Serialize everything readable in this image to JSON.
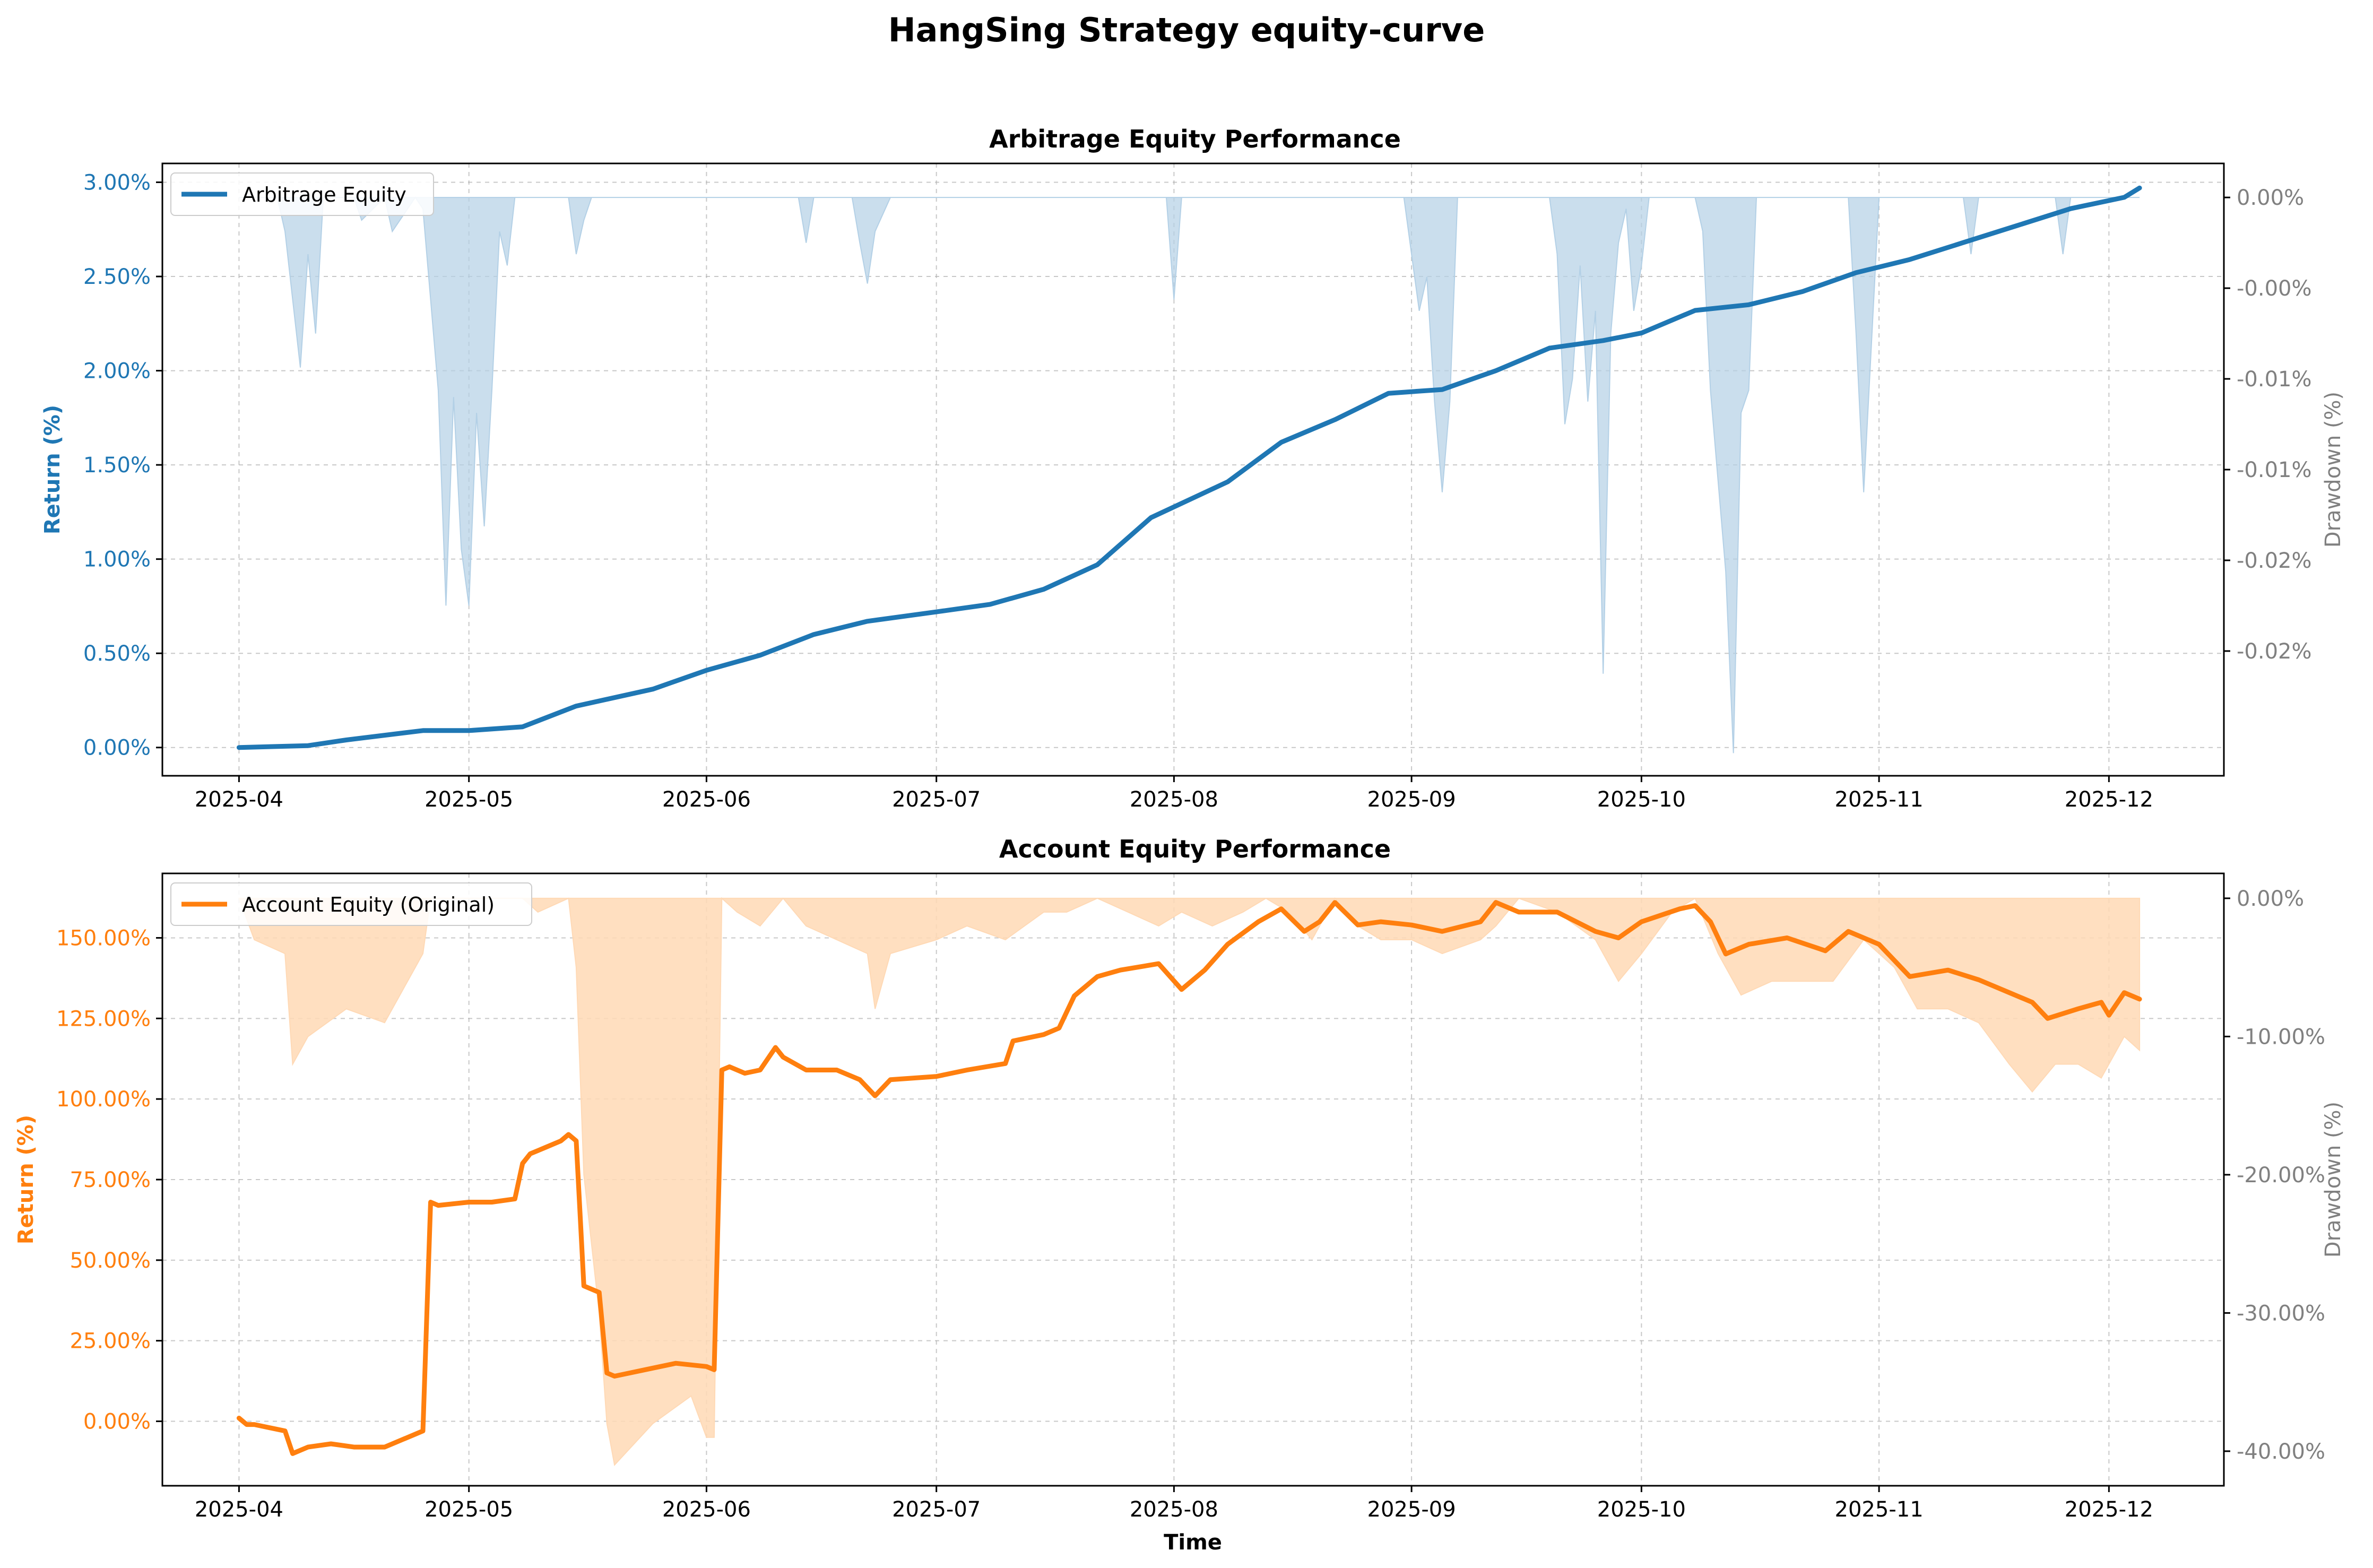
{
  "figure_title": "HangSing Strategy equity-curve",
  "colors": {
    "arb": "#1f77b4",
    "arb_fill": "#b3d0e6",
    "acct": "#ff7f0e",
    "acct_fill": "#ffd9b5",
    "secondary_axis": "#808080",
    "grid": "#b0b0b0"
  },
  "chart_data": [
    {
      "type": "line",
      "title": "Arbitrage Equity Performance",
      "xlabel": "",
      "ylabel": "Return (%)",
      "y2label": "Drawdown (%)",
      "legend": [
        "Arbitrage Equity"
      ],
      "legend_position": "top-left",
      "grid": true,
      "xlim": [
        "2025-03-22",
        "2025-12-16"
      ],
      "ylim": [
        -0.15,
        3.1
      ],
      "y2lim": [
        -0.0255,
        0.0015
      ],
      "x_ticks": [
        "2025-04",
        "2025-05",
        "2025-06",
        "2025-07",
        "2025-08",
        "2025-09",
        "2025-10",
        "2025-11",
        "2025-12"
      ],
      "x_tick_dates": [
        "2025-04-01",
        "2025-05-01",
        "2025-06-01",
        "2025-07-01",
        "2025-08-01",
        "2025-09-01",
        "2025-10-01",
        "2025-11-01",
        "2025-12-01"
      ],
      "y_ticks": [
        0,
        0.5,
        1.0,
        1.5,
        2.0,
        2.5,
        3.0
      ],
      "y_tick_labels": [
        "0.00%",
        "0.50%",
        "1.00%",
        "1.50%",
        "2.00%",
        "2.50%",
        "3.00%"
      ],
      "y2_ticks": [
        0,
        -0.004,
        -0.008,
        -0.012,
        -0.016,
        -0.02
      ],
      "y2_tick_labels": [
        "0.00%",
        "-0.00%",
        "-0.01%",
        "-0.01%",
        "-0.02%",
        "-0.02%"
      ],
      "series": [
        {
          "name": "Arbitrage Equity",
          "kind": "line",
          "x": [
            "2025-04-01",
            "2025-04-10",
            "2025-04-15",
            "2025-04-25",
            "2025-05-01",
            "2025-05-08",
            "2025-05-15",
            "2025-05-25",
            "2025-06-01",
            "2025-06-08",
            "2025-06-15",
            "2025-06-22",
            "2025-07-01",
            "2025-07-08",
            "2025-07-15",
            "2025-07-22",
            "2025-07-29",
            "2025-08-08",
            "2025-08-15",
            "2025-08-22",
            "2025-08-29",
            "2025-09-05",
            "2025-09-12",
            "2025-09-19",
            "2025-09-26",
            "2025-10-01",
            "2025-10-08",
            "2025-10-15",
            "2025-10-22",
            "2025-10-29",
            "2025-11-05",
            "2025-11-12",
            "2025-11-19",
            "2025-11-26",
            "2025-12-03",
            "2025-12-05"
          ],
          "values": [
            0.0,
            0.01,
            0.04,
            0.09,
            0.09,
            0.11,
            0.22,
            0.31,
            0.41,
            0.49,
            0.6,
            0.67,
            0.72,
            0.76,
            0.84,
            0.97,
            1.22,
            1.41,
            1.62,
            1.74,
            1.88,
            1.9,
            2.0,
            2.12,
            2.16,
            2.2,
            2.32,
            2.35,
            2.42,
            2.52,
            2.59,
            2.68,
            2.77,
            2.86,
            2.92,
            2.97
          ]
        },
        {
          "name": "Drawdown",
          "kind": "area",
          "x": [
            "2025-04-01",
            "2025-04-06",
            "2025-04-07",
            "2025-04-08",
            "2025-04-09",
            "2025-04-10",
            "2025-04-11",
            "2025-04-12",
            "2025-04-16",
            "2025-04-17",
            "2025-04-20",
            "2025-04-21",
            "2025-04-24",
            "2025-04-25",
            "2025-04-26",
            "2025-04-27",
            "2025-04-28",
            "2025-04-29",
            "2025-04-30",
            "2025-05-01",
            "2025-05-02",
            "2025-05-03",
            "2025-05-04",
            "2025-05-05",
            "2025-05-06",
            "2025-05-07",
            "2025-05-08",
            "2025-05-14",
            "2025-05-15",
            "2025-05-16",
            "2025-05-17",
            "2025-06-13",
            "2025-06-14",
            "2025-06-15",
            "2025-06-20",
            "2025-06-21",
            "2025-06-22",
            "2025-06-23",
            "2025-06-25",
            "2025-07-31",
            "2025-08-01",
            "2025-08-02",
            "2025-08-31",
            "2025-09-01",
            "2025-09-02",
            "2025-09-03",
            "2025-09-04",
            "2025-09-05",
            "2025-09-06",
            "2025-09-07",
            "2025-09-08",
            "2025-09-19",
            "2025-09-20",
            "2025-09-21",
            "2025-09-22",
            "2025-09-23",
            "2025-09-24",
            "2025-09-25",
            "2025-09-26",
            "2025-09-27",
            "2025-09-28",
            "2025-09-29",
            "2025-09-30",
            "2025-10-01",
            "2025-10-02",
            "2025-10-08",
            "2025-10-09",
            "2025-10-10",
            "2025-10-11",
            "2025-10-12",
            "2025-10-13",
            "2025-10-14",
            "2025-10-15",
            "2025-10-16",
            "2025-10-28",
            "2025-10-29",
            "2025-10-30",
            "2025-10-31",
            "2025-11-01",
            "2025-11-02",
            "2025-11-12",
            "2025-11-13",
            "2025-11-14",
            "2025-11-24",
            "2025-11-25",
            "2025-11-26",
            "2025-12-05"
          ],
          "values": [
            0,
            0,
            -0.0015,
            -0.0045,
            -0.0075,
            -0.0025,
            -0.006,
            -0.0,
            -0.0,
            -0.001,
            -0.0,
            -0.0015,
            -0.0,
            -0.0005,
            -0.0045,
            -0.0085,
            -0.018,
            -0.0088,
            -0.0155,
            -0.018,
            -0.0095,
            -0.0145,
            -0.0085,
            -0.0015,
            -0.003,
            -0.0,
            -0.0,
            -0.0,
            -0.0025,
            -0.001,
            -0.0,
            -0.0,
            -0.002,
            -0.0,
            -0.0,
            -0.002,
            -0.0038,
            -0.0015,
            -0.0,
            -0.0,
            -0.0045,
            -0.0,
            -0.0,
            -0.0025,
            -0.005,
            -0.0035,
            -0.009,
            -0.013,
            -0.009,
            -0.0,
            -0.0,
            -0.0,
            -0.0025,
            -0.01,
            -0.008,
            -0.003,
            -0.009,
            -0.005,
            -0.021,
            -0.006,
            -0.002,
            -0.0005,
            -0.005,
            -0.003,
            -0.0,
            -0.0,
            -0.0015,
            -0.0085,
            -0.0125,
            -0.0165,
            -0.0245,
            -0.0095,
            -0.0085,
            -0.0,
            -0.0,
            -0.006,
            -0.013,
            -0.0065,
            -0.0,
            -0.0,
            -0.0,
            -0.0025,
            -0.0,
            -0.0,
            -0.0025,
            -0.0,
            0
          ]
        }
      ]
    },
    {
      "type": "line",
      "title": "Account Equity Performance",
      "xlabel": "Time",
      "ylabel": "Return (%)",
      "y2label": "Drawdown (%)",
      "legend": [
        "Account Equity (Original)"
      ],
      "legend_position": "top-left",
      "grid": true,
      "xlim": [
        "2025-03-22",
        "2025-12-16"
      ],
      "ylim": [
        -20,
        170
      ],
      "y2lim": [
        -42.5,
        1.8
      ],
      "x_ticks": [
        "2025-04",
        "2025-05",
        "2025-06",
        "2025-07",
        "2025-08",
        "2025-09",
        "2025-10",
        "2025-11",
        "2025-12"
      ],
      "x_tick_dates": [
        "2025-04-01",
        "2025-05-01",
        "2025-06-01",
        "2025-07-01",
        "2025-08-01",
        "2025-09-01",
        "2025-10-01",
        "2025-11-01",
        "2025-12-01"
      ],
      "y_ticks": [
        0,
        25,
        50,
        75,
        100,
        125,
        150
      ],
      "y_tick_labels": [
        "0.00%",
        "25.00%",
        "50.00%",
        "75.00%",
        "100.00%",
        "125.00%",
        "150.00%"
      ],
      "y2_ticks": [
        0,
        -10,
        -20,
        -30,
        -40
      ],
      "y2_tick_labels": [
        "0.00%",
        "-10.00%",
        "-20.00%",
        "-30.00%",
        "-40.00%"
      ],
      "series": [
        {
          "name": "Account Equity (Original)",
          "kind": "line",
          "x": [
            "2025-04-01",
            "2025-04-02",
            "2025-04-03",
            "2025-04-05",
            "2025-04-07",
            "2025-04-08",
            "2025-04-10",
            "2025-04-13",
            "2025-04-16",
            "2025-04-20",
            "2025-04-24",
            "2025-04-25",
            "2025-04-26",
            "2025-04-27",
            "2025-05-01",
            "2025-05-04",
            "2025-05-07",
            "2025-05-08",
            "2025-05-09",
            "2025-05-11",
            "2025-05-13",
            "2025-05-14",
            "2025-05-15",
            "2025-05-16",
            "2025-05-18",
            "2025-05-19",
            "2025-05-20",
            "2025-05-24",
            "2025-05-28",
            "2025-06-01",
            "2025-06-02",
            "2025-06-03",
            "2025-06-04",
            "2025-06-06",
            "2025-06-08",
            "2025-06-10",
            "2025-06-11",
            "2025-06-14",
            "2025-06-18",
            "2025-06-21",
            "2025-06-23",
            "2025-06-25",
            "2025-07-01",
            "2025-07-05",
            "2025-07-10",
            "2025-07-11",
            "2025-07-15",
            "2025-07-17",
            "2025-07-19",
            "2025-07-22",
            "2025-07-25",
            "2025-07-30",
            "2025-08-02",
            "2025-08-05",
            "2025-08-08",
            "2025-08-12",
            "2025-08-15",
            "2025-08-18",
            "2025-08-20",
            "2025-08-22",
            "2025-08-25",
            "2025-08-28",
            "2025-09-01",
            "2025-09-05",
            "2025-09-10",
            "2025-09-12",
            "2025-09-15",
            "2025-09-20",
            "2025-09-25",
            "2025-09-28",
            "2025-10-01",
            "2025-10-06",
            "2025-10-08",
            "2025-10-10",
            "2025-10-12",
            "2025-10-15",
            "2025-10-20",
            "2025-10-25",
            "2025-10-28",
            "2025-11-01",
            "2025-11-03",
            "2025-11-05",
            "2025-11-10",
            "2025-11-14",
            "2025-11-18",
            "2025-11-21",
            "2025-11-23",
            "2025-11-27",
            "2025-11-30",
            "2025-12-01",
            "2025-12-03",
            "2025-12-05"
          ],
          "values": [
            1,
            -1,
            -1,
            -2,
            -3,
            -10,
            -8,
            -7,
            -8,
            -8,
            -4,
            -3,
            68,
            67,
            68,
            68,
            69,
            80,
            83,
            85,
            87,
            89,
            87,
            42,
            40,
            15,
            14,
            16,
            18,
            17,
            16,
            109,
            110,
            108,
            109,
            116,
            113,
            109,
            109,
            106,
            101,
            106,
            107,
            109,
            111,
            118,
            120,
            122,
            132,
            138,
            140,
            142,
            134,
            140,
            148,
            155,
            159,
            152,
            155,
            161,
            154,
            155,
            154,
            152,
            155,
            161,
            158,
            158,
            152,
            150,
            155,
            159,
            160,
            155,
            145,
            148,
            150,
            146,
            152,
            148,
            143,
            138,
            140,
            137,
            133,
            130,
            125,
            128,
            130,
            126,
            133,
            131
          ]
        },
        {
          "name": "Drawdown",
          "kind": "area",
          "x": [
            "2025-04-01",
            "2025-04-03",
            "2025-04-07",
            "2025-04-08",
            "2025-04-10",
            "2025-04-15",
            "2025-04-20",
            "2025-04-24",
            "2025-04-25",
            "2025-04-26",
            "2025-05-08",
            "2025-05-10",
            "2025-05-14",
            "2025-05-15",
            "2025-05-16",
            "2025-05-18",
            "2025-05-19",
            "2025-05-20",
            "2025-05-25",
            "2025-05-30",
            "2025-06-01",
            "2025-06-02",
            "2025-06-03",
            "2025-06-05",
            "2025-06-08",
            "2025-06-11",
            "2025-06-14",
            "2025-06-18",
            "2025-06-22",
            "2025-06-23",
            "2025-06-25",
            "2025-07-01",
            "2025-07-05",
            "2025-07-10",
            "2025-07-15",
            "2025-07-18",
            "2025-07-22",
            "2025-07-26",
            "2025-07-30",
            "2025-08-02",
            "2025-08-06",
            "2025-08-10",
            "2025-08-13",
            "2025-08-16",
            "2025-08-19",
            "2025-08-22",
            "2025-08-25",
            "2025-08-28",
            "2025-09-01",
            "2025-09-05",
            "2025-09-10",
            "2025-09-12",
            "2025-09-15",
            "2025-09-20",
            "2025-09-25",
            "2025-09-28",
            "2025-10-01",
            "2025-10-05",
            "2025-10-08",
            "2025-10-11",
            "2025-10-14",
            "2025-10-18",
            "2025-10-22",
            "2025-10-26",
            "2025-10-30",
            "2025-11-03",
            "2025-11-06",
            "2025-11-10",
            "2025-11-14",
            "2025-11-18",
            "2025-11-21",
            "2025-11-24",
            "2025-11-27",
            "2025-11-30",
            "2025-12-03",
            "2025-12-05"
          ],
          "values": [
            0,
            -3,
            -4,
            -12,
            -10,
            -8,
            -9,
            -5,
            -4,
            0,
            0,
            -1,
            0,
            -5,
            -20,
            -30,
            -38,
            -41,
            -38,
            -36,
            -39,
            -39,
            0,
            -1,
            -2,
            0,
            -2,
            -3,
            -4,
            -8,
            -4,
            -3,
            -2,
            -3,
            -1,
            -1,
            0,
            -1,
            -2,
            -1,
            -2,
            -1,
            0,
            -1,
            -3,
            0,
            -2,
            -3,
            -3,
            -4,
            -3,
            -2,
            0,
            -1,
            -3,
            -6,
            -4,
            -1,
            0,
            -4,
            -7,
            -6,
            -6,
            -6,
            -3,
            -5,
            -8,
            -8,
            -9,
            -12,
            -14,
            -12,
            -12,
            -13,
            -10,
            -11
          ]
        }
      ]
    }
  ]
}
